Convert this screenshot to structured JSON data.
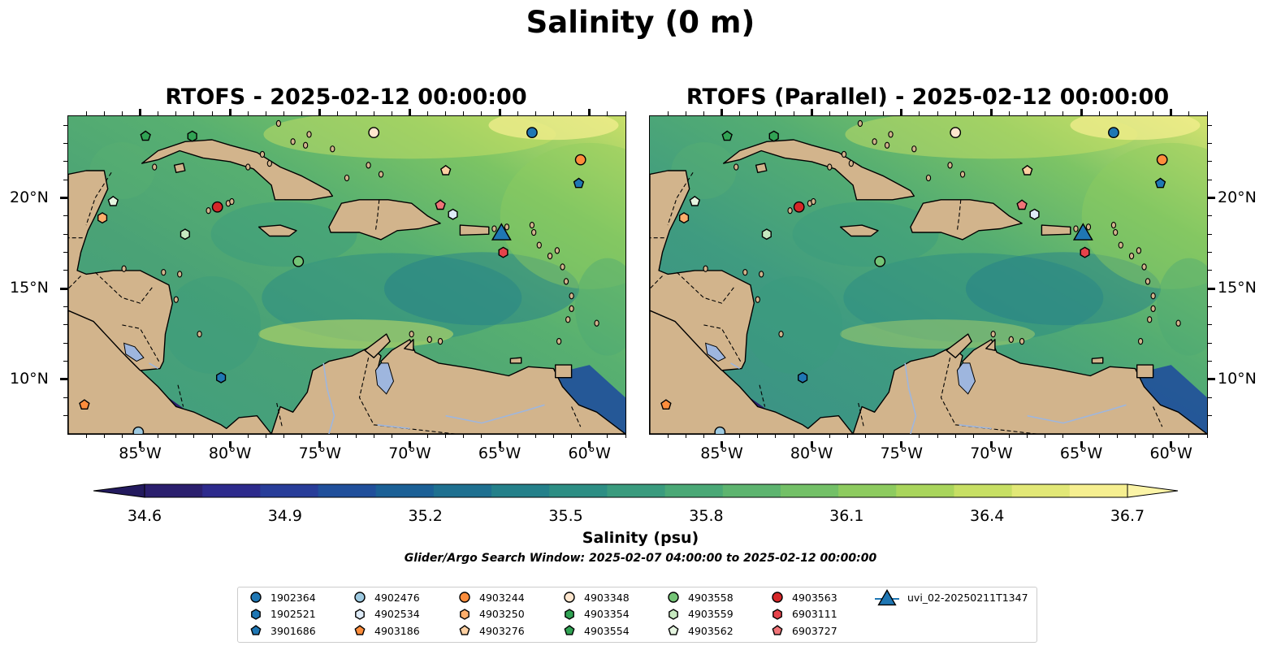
{
  "title": "Salinity (0 m)",
  "panels": [
    {
      "title": "RTOFS - 2025-02-12 00:00:00"
    },
    {
      "title": "RTOFS (Parallel) - 2025-02-12 00:00:00"
    }
  ],
  "map": {
    "lon_range": [
      -89,
      -58
    ],
    "lat_range": [
      7,
      24.5
    ],
    "x_ticks": [
      {
        "lon": -85,
        "label": "85°W"
      },
      {
        "lon": -80,
        "label": "80°W"
      },
      {
        "lon": -75,
        "label": "75°W"
      },
      {
        "lon": -70,
        "label": "70°W"
      },
      {
        "lon": -65,
        "label": "65°W"
      },
      {
        "lon": -60,
        "label": "60°W"
      }
    ],
    "y_ticks": [
      {
        "lat": 20,
        "label": "20°N"
      },
      {
        "lat": 15,
        "label": "15°N"
      },
      {
        "lat": 10,
        "label": "10°N"
      }
    ]
  },
  "colorbar": {
    "label": "Salinity (psu)",
    "min": 34.6,
    "max": 36.7,
    "ticks": [
      "34.6",
      "34.9",
      "35.2",
      "35.5",
      "35.8",
      "36.1",
      "36.4",
      "36.7"
    ],
    "colors": [
      "#2b1f6e",
      "#2d2a8c",
      "#283d99",
      "#204f9b",
      "#1b6096",
      "#1e7090",
      "#24808a",
      "#2d8e84",
      "#3a9b7e",
      "#4aa876",
      "#5db46f",
      "#73c067",
      "#8dcb5f",
      "#a9d55c",
      "#c7df64",
      "#e2e877",
      "#f6ef90"
    ]
  },
  "search_window": "Glider/Argo Search Window: 2025-02-07 04:00:00 to 2025-02-12 00:00:00",
  "colors": {
    "land": "#d2b48c",
    "lake": "#9eb6de",
    "low_salinity": "#2b1f6e"
  },
  "platforms": [
    {
      "id": "1902364",
      "marker": "circle",
      "color": "#1f77b4",
      "lon": -63.2,
      "lat": 23.6
    },
    {
      "id": "1902521",
      "marker": "hexagon",
      "color": "#1f77b4",
      "lon": -80.5,
      "lat": 10.1
    },
    {
      "id": "3901686",
      "marker": "pentagon",
      "color": "#1f77b4",
      "lon": -60.6,
      "lat": 20.8
    },
    {
      "id": "4902476",
      "marker": "circle",
      "color": "#9ecae1",
      "lon": -85.1,
      "lat": 7.1
    },
    {
      "id": "4902534",
      "marker": "hexagon",
      "color": "#deebf7",
      "lon": -67.6,
      "lat": 19.1
    },
    {
      "id": "4903186",
      "marker": "pentagon",
      "color": "#fd8d3c",
      "lon": -88.1,
      "lat": 8.6
    },
    {
      "id": "4903244",
      "marker": "circle",
      "color": "#fd8d3c",
      "lon": -60.5,
      "lat": 22.1
    },
    {
      "id": "4903250",
      "marker": "hexagon",
      "color": "#fdae6b",
      "lon": -87.1,
      "lat": 18.9
    },
    {
      "id": "4903276",
      "marker": "pentagon",
      "color": "#fdd0a2",
      "lon": -68.0,
      "lat": 21.5
    },
    {
      "id": "4903348",
      "marker": "circle",
      "color": "#fee6ce",
      "lon": -72.0,
      "lat": 23.6
    },
    {
      "id": "4903354",
      "marker": "hexagon",
      "color": "#31a354",
      "lon": -82.1,
      "lat": 23.4
    },
    {
      "id": "4903554",
      "marker": "pentagon",
      "color": "#31a354",
      "lon": -84.7,
      "lat": 23.4
    },
    {
      "id": "4903558",
      "marker": "circle",
      "color": "#74c476",
      "lon": -76.2,
      "lat": 16.5
    },
    {
      "id": "4903559",
      "marker": "hexagon",
      "color": "#c7e9c0",
      "lon": -82.5,
      "lat": 18.0
    },
    {
      "id": "4903562",
      "marker": "pentagon",
      "color": "#e5f5e0",
      "lon": -86.5,
      "lat": 19.8
    },
    {
      "id": "4903563",
      "marker": "circle",
      "color": "#d62728",
      "lon": -80.7,
      "lat": 19.5
    },
    {
      "id": "6903111",
      "marker": "hexagon",
      "color": "#e6434b",
      "lon": -64.8,
      "lat": 17.0
    },
    {
      "id": "6903727",
      "marker": "pentagon",
      "color": "#f07478",
      "lon": -68.3,
      "lat": 19.6
    },
    {
      "id": "uvi_02-20250211T1347",
      "marker": "triangle",
      "color": "#1f77b4",
      "lon": -64.9,
      "lat": 18.1
    }
  ]
}
